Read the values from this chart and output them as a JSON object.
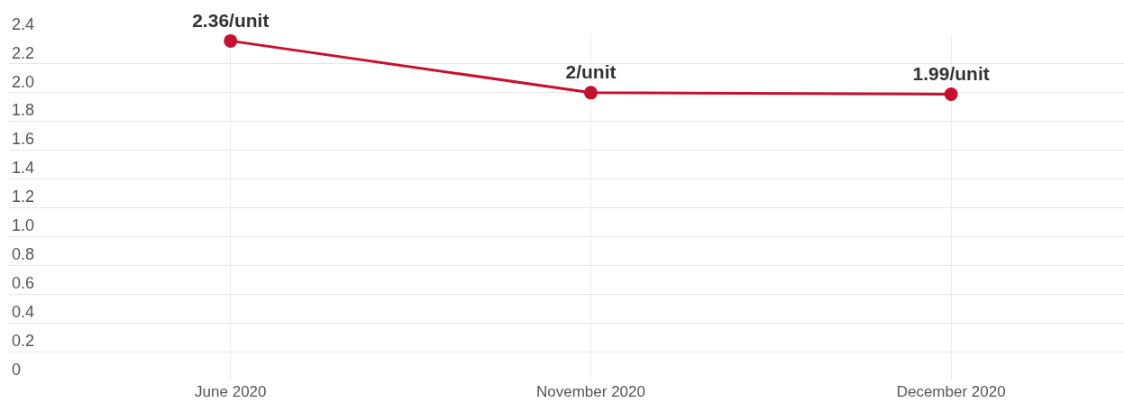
{
  "chart_data": {
    "type": "line",
    "categories": [
      "June 2020",
      "November 2020",
      "December 2020"
    ],
    "series": [
      {
        "color": "#c8102e",
        "values": [
          2.36,
          2,
          1.99
        ],
        "value_labels": [
          "2.36/unit",
          "2/unit",
          "1.99/unit"
        ]
      }
    ],
    "ylim": [
      0,
      2.4
    ],
    "yticks": [
      0,
      0.2,
      0.4,
      0.6,
      0.8,
      {
        "value": 1,
        "label": "1.0"
      },
      1.2,
      1.4,
      1.6,
      1.8,
      {
        "value": 2,
        "label": "2.0"
      },
      2.2,
      2.4
    ],
    "grid": true,
    "marker": "circle",
    "line_style": "solid"
  }
}
